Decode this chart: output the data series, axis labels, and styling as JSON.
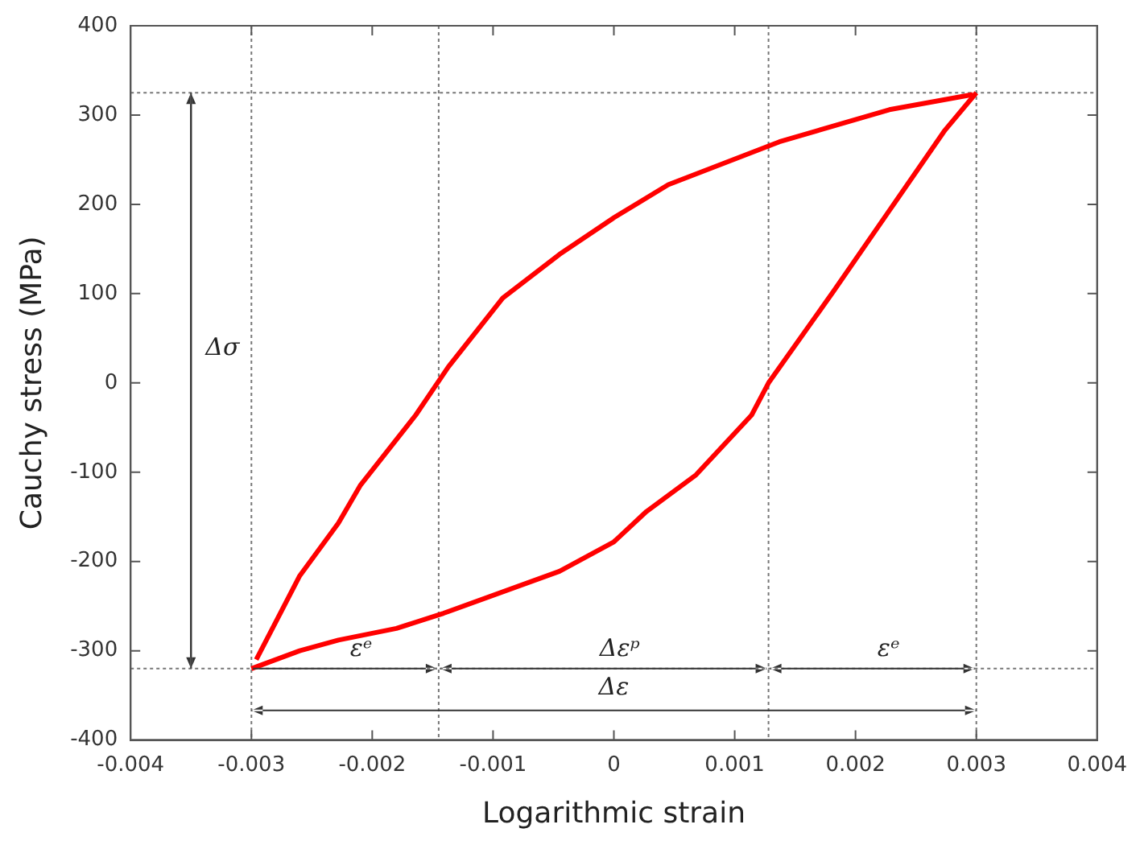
{
  "chart_data": {
    "type": "line",
    "xlabel": "Logarithmic strain",
    "ylabel": "Cauchy stress (MPa)",
    "xlim": [
      -0.004,
      0.004
    ],
    "xticks": [
      -0.004,
      -0.003,
      -0.002,
      -0.001,
      0,
      0.001,
      0.002,
      0.003,
      0.004
    ],
    "ylim": [
      -400,
      400
    ],
    "yticks": [
      -400,
      -300,
      -200,
      -100,
      0,
      100,
      200,
      300,
      400
    ],
    "grid": false,
    "legend": false,
    "marker": "none",
    "line_style": "solid",
    "series": [
      {
        "color": "#ff0000",
        "x": [
          -0.003,
          -0.0026,
          -0.00228,
          -0.0018,
          -0.00141,
          -0.00045,
          0,
          0.00027,
          0.00068,
          0.00114,
          0.00128,
          0.00182,
          0.00228,
          0.00274,
          0.003
        ],
        "values": [
          -320,
          -300,
          -288,
          -275,
          -258,
          -211,
          -178,
          -144,
          -103,
          -36,
          0,
          103,
          193,
          283,
          325
        ]
      },
      {
        "color": "#ff0000",
        "x": [
          -0.00296,
          -0.0026,
          -0.00228,
          -0.0021,
          -0.00164,
          -0.00137,
          -0.00092,
          -0.00045,
          0,
          0.00045,
          0.00137,
          0.00228,
          0.00297
        ],
        "values": [
          -310,
          -216,
          -157,
          -115,
          -36,
          18,
          95,
          144,
          185,
          222,
          270,
          306,
          323
        ]
      }
    ],
    "ref_lines": [
      {
        "axis": "x",
        "value": -0.0035,
        "color": "#333333",
        "line_style": "solid"
      },
      {
        "axis": "x",
        "value": -0.003,
        "color": "#777777",
        "line_style": "dotted"
      },
      {
        "axis": "x",
        "value": -0.00145,
        "color": "#777777",
        "line_style": "dotted"
      },
      {
        "axis": "x",
        "value": 0.00128,
        "color": "#777777",
        "line_style": "dotted"
      },
      {
        "axis": "x",
        "value": 0.003,
        "color": "#777777",
        "line_style": "dotted"
      },
      {
        "axis": "y",
        "value": 325,
        "color": "#777777",
        "line_style": "dotted"
      },
      {
        "axis": "y",
        "value": -320,
        "color": "#777777",
        "line_style": "dotted"
      }
    ],
    "annotations": [
      "Δσ",
      "εᵉ",
      "Δεᵖ",
      "εᵉ",
      "Δε"
    ]
  }
}
